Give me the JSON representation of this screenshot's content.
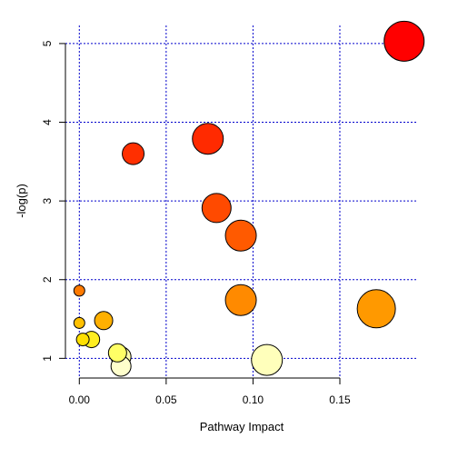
{
  "chart_data": {
    "type": "scatter",
    "title": "",
    "xlabel": "Pathway Impact",
    "ylabel": "-log(p)",
    "xlim": [
      -0.008,
      0.195
    ],
    "ylim": [
      0.75,
      5.23
    ],
    "x_ticks": [
      0.0,
      0.05,
      0.1,
      0.15
    ],
    "x_tick_labels": [
      "0.00",
      "0.05",
      "0.10",
      "0.15"
    ],
    "y_ticks": [
      1,
      2,
      3,
      4,
      5
    ],
    "y_tick_labels": [
      "1",
      "2",
      "3",
      "4",
      "5"
    ],
    "grid": true,
    "grid_color": "#0000cc",
    "legend": "none",
    "points": [
      {
        "x": 0.187,
        "y": 5.03,
        "size": 22,
        "color": "#ff0000"
      },
      {
        "x": 0.074,
        "y": 3.79,
        "size": 17,
        "color": "#ff2a00"
      },
      {
        "x": 0.031,
        "y": 3.6,
        "size": 12,
        "color": "#ff2f00"
      },
      {
        "x": 0.079,
        "y": 2.91,
        "size": 16,
        "color": "#ff4a00"
      },
      {
        "x": 0.093,
        "y": 2.56,
        "size": 17,
        "color": "#ff5a00"
      },
      {
        "x": 0.093,
        "y": 1.74,
        "size": 17,
        "color": "#ff8a00"
      },
      {
        "x": 0.171,
        "y": 1.63,
        "size": 21,
        "color": "#ff9900"
      },
      {
        "x": 0.0,
        "y": 1.86,
        "size": 6,
        "color": "#ff7a00"
      },
      {
        "x": 0.014,
        "y": 1.48,
        "size": 10,
        "color": "#ffb000"
      },
      {
        "x": 0.0,
        "y": 1.45,
        "size": 6,
        "color": "#ffc000"
      },
      {
        "x": 0.002,
        "y": 1.24,
        "size": 7,
        "color": "#ffe000"
      },
      {
        "x": 0.007,
        "y": 1.24,
        "size": 9,
        "color": "#ffee22"
      },
      {
        "x": 0.022,
        "y": 1.07,
        "size": 10,
        "color": "#ffff66"
      },
      {
        "x": 0.024,
        "y": 1.02,
        "size": 11,
        "color": "#ffffaa"
      },
      {
        "x": 0.024,
        "y": 0.9,
        "size": 11,
        "color": "#ffffcc"
      },
      {
        "x": 0.108,
        "y": 0.98,
        "size": 17,
        "color": "#ffffbb"
      }
    ]
  }
}
